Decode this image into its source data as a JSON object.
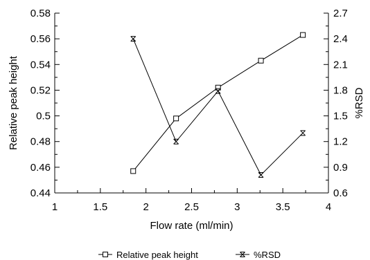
{
  "chart_data": {
    "type": "line",
    "title": "",
    "xlabel": "Flow rate (ml/min)",
    "ylabel": "Relative peak height",
    "y2label": "%RSD",
    "xlim": [
      1,
      4
    ],
    "ylim": [
      0.44,
      0.58
    ],
    "y2lim": [
      0.6,
      2.7
    ],
    "x_ticks": [
      "1",
      "1.5",
      "2",
      "2.5",
      "3",
      "3.5",
      "4"
    ],
    "y_ticks": [
      "0.44",
      "0.46",
      "0.48",
      "0.5",
      "0.52",
      "0.54",
      "0.56",
      "0.58"
    ],
    "y2_ticks": [
      "0.6",
      "0.9",
      "1.2",
      "1.5",
      "1.8",
      "2.1",
      "2.4",
      "2.7"
    ],
    "grid": false,
    "legend_position": "bottom",
    "series": [
      {
        "name": "Relative peak height",
        "axis": "left",
        "marker": "square",
        "x": [
          1.86,
          2.33,
          2.79,
          3.26,
          3.72
        ],
        "values": [
          0.457,
          0.498,
          0.522,
          0.543,
          0.563
        ]
      },
      {
        "name": "%RSD",
        "axis": "right",
        "marker": "x-bar",
        "x": [
          1.86,
          2.33,
          2.79,
          3.26,
          3.72
        ],
        "values": [
          2.4,
          1.2,
          1.79,
          0.81,
          1.3
        ]
      }
    ],
    "colors": {
      "line": "#000000",
      "background": "#ffffff"
    }
  }
}
